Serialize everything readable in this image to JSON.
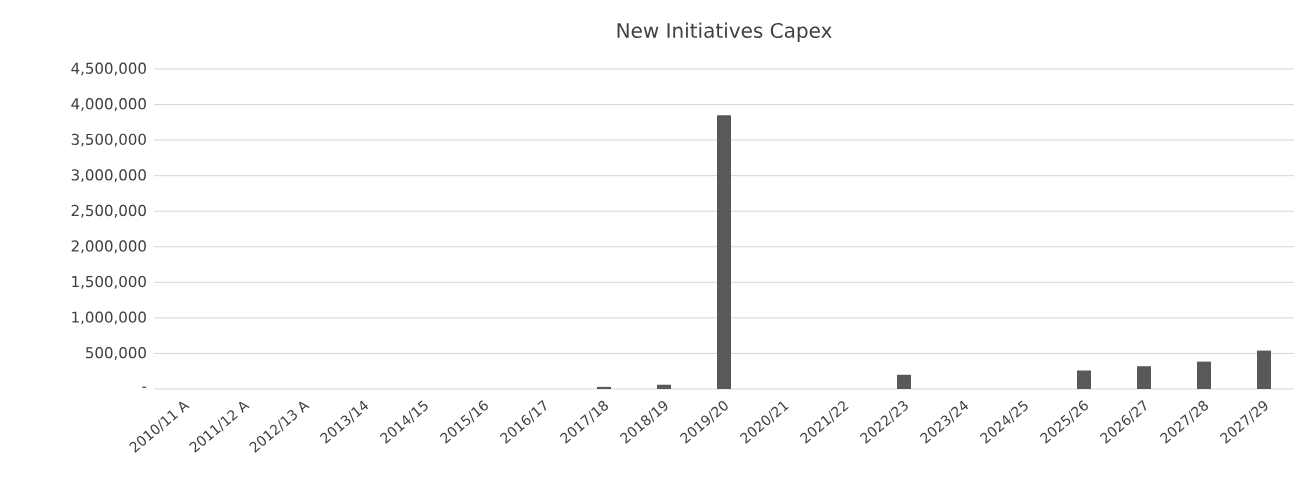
{
  "chart_data": {
    "type": "bar",
    "title": "New Initiatives Capex",
    "categories": [
      "2010/11 A",
      "2011/12 A",
      "2012/13 A",
      "2013/14",
      "2014/15",
      "2015/16",
      "2016/17",
      "2017/18",
      "2018/19",
      "2019/20",
      "2020/21",
      "2021/22",
      "2022/23",
      "2023/24",
      "2024/25",
      "2025/26",
      "2026/27",
      "2027/28",
      "2027/29"
    ],
    "values": [
      0,
      0,
      0,
      0,
      0,
      0,
      0,
      30000,
      60000,
      3850000,
      0,
      0,
      200000,
      0,
      0,
      260000,
      320000,
      385000,
      540000
    ],
    "color": "#595959",
    "ylim": [
      0,
      4500000
    ],
    "yticks": [
      {
        "value": 0,
        "label": "-"
      },
      {
        "value": 500000,
        "label": "500,000"
      },
      {
        "value": 1000000,
        "label": "1,000,000"
      },
      {
        "value": 1500000,
        "label": "1,500,000"
      },
      {
        "value": 2000000,
        "label": "2,000,000"
      },
      {
        "value": 2500000,
        "label": "2,500,000"
      },
      {
        "value": 3000000,
        "label": "3,000,000"
      },
      {
        "value": 3500000,
        "label": "3,500,000"
      },
      {
        "value": 4000000,
        "label": "4,000,000"
      },
      {
        "value": 4500000,
        "label": "4,500,000"
      }
    ],
    "grid": "y"
  }
}
